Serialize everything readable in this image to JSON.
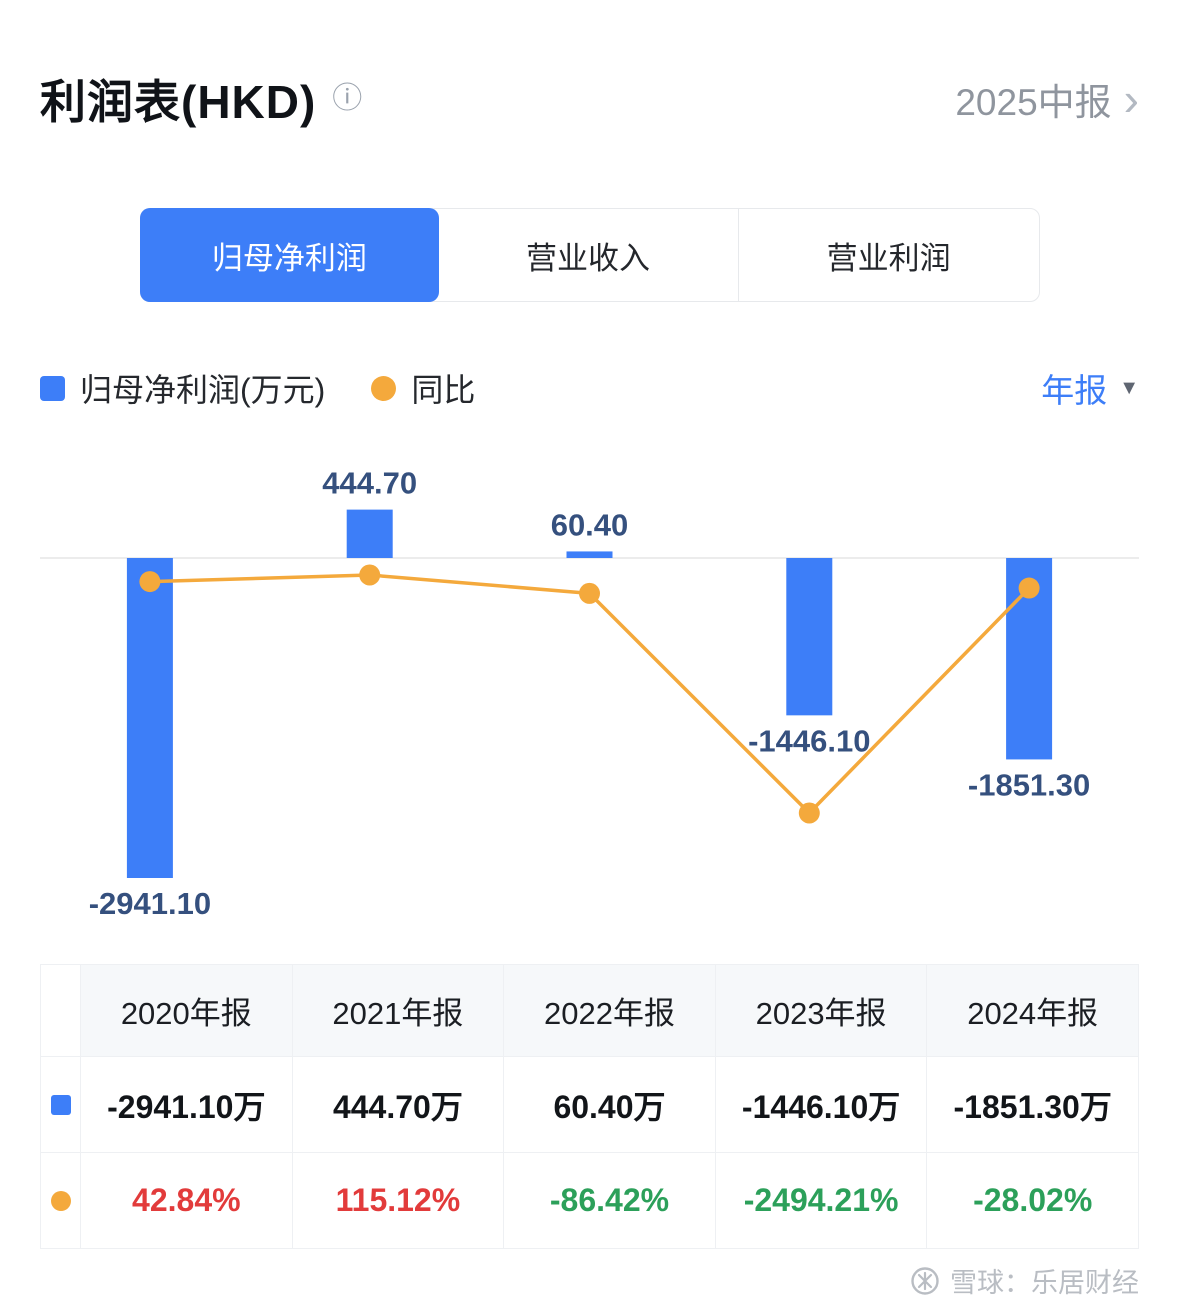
{
  "header": {
    "title": "利润表(HKD)",
    "info_icon": "ⓘ",
    "period_label": "2025中报",
    "chevron": "›"
  },
  "tabs": [
    {
      "label": "归母净利润",
      "active": true
    },
    {
      "label": "营业收入",
      "active": false
    },
    {
      "label": "营业利润",
      "active": false
    }
  ],
  "legend": {
    "bar_label": "归母净利润(万元)",
    "line_label": "同比",
    "period_filter": "年报",
    "caret": "▼"
  },
  "chart_data": {
    "type": "bar+line",
    "categories": [
      "2020年报",
      "2021年报",
      "2022年报",
      "2023年报",
      "2024年报"
    ],
    "series": [
      {
        "name": "归母净利润(万元)",
        "type": "bar",
        "values": [
          -2941.1,
          444.7,
          60.4,
          -1446.1,
          -1851.3
        ],
        "labels": [
          "-2941.10",
          "444.70",
          "60.40",
          "-1446.10",
          "-1851.30"
        ],
        "color": "#3D7EF8"
      },
      {
        "name": "同比",
        "type": "line",
        "values": [
          42.84,
          115.12,
          -86.42,
          -2494.21,
          -28.02
        ],
        "color": "#F4A93C"
      }
    ],
    "xlabel": "",
    "ylabel": "万元",
    "grid": false,
    "legend_position": "top-left",
    "zero_line": true
  },
  "table": {
    "headers": [
      "2020年报",
      "2021年报",
      "2022年报",
      "2023年报",
      "2024年报"
    ],
    "rows": [
      {
        "series": "归母净利润",
        "cells": [
          "-2941.10万",
          "444.70万",
          "60.40万",
          "-1446.10万",
          "-1851.30万"
        ]
      },
      {
        "series": "同比",
        "cells": [
          "42.84%",
          "115.12%",
          "-86.42%",
          "-2494.21%",
          "-28.02%"
        ]
      }
    ]
  },
  "watermark": "雪球：乐居财经",
  "colors": {
    "accent": "#3D7EF8",
    "orange": "#F4A93C",
    "up_red": "#E23B3B",
    "down_green": "#2CA05A",
    "bar_label": "#35507E",
    "zero_line": "#ececec"
  }
}
